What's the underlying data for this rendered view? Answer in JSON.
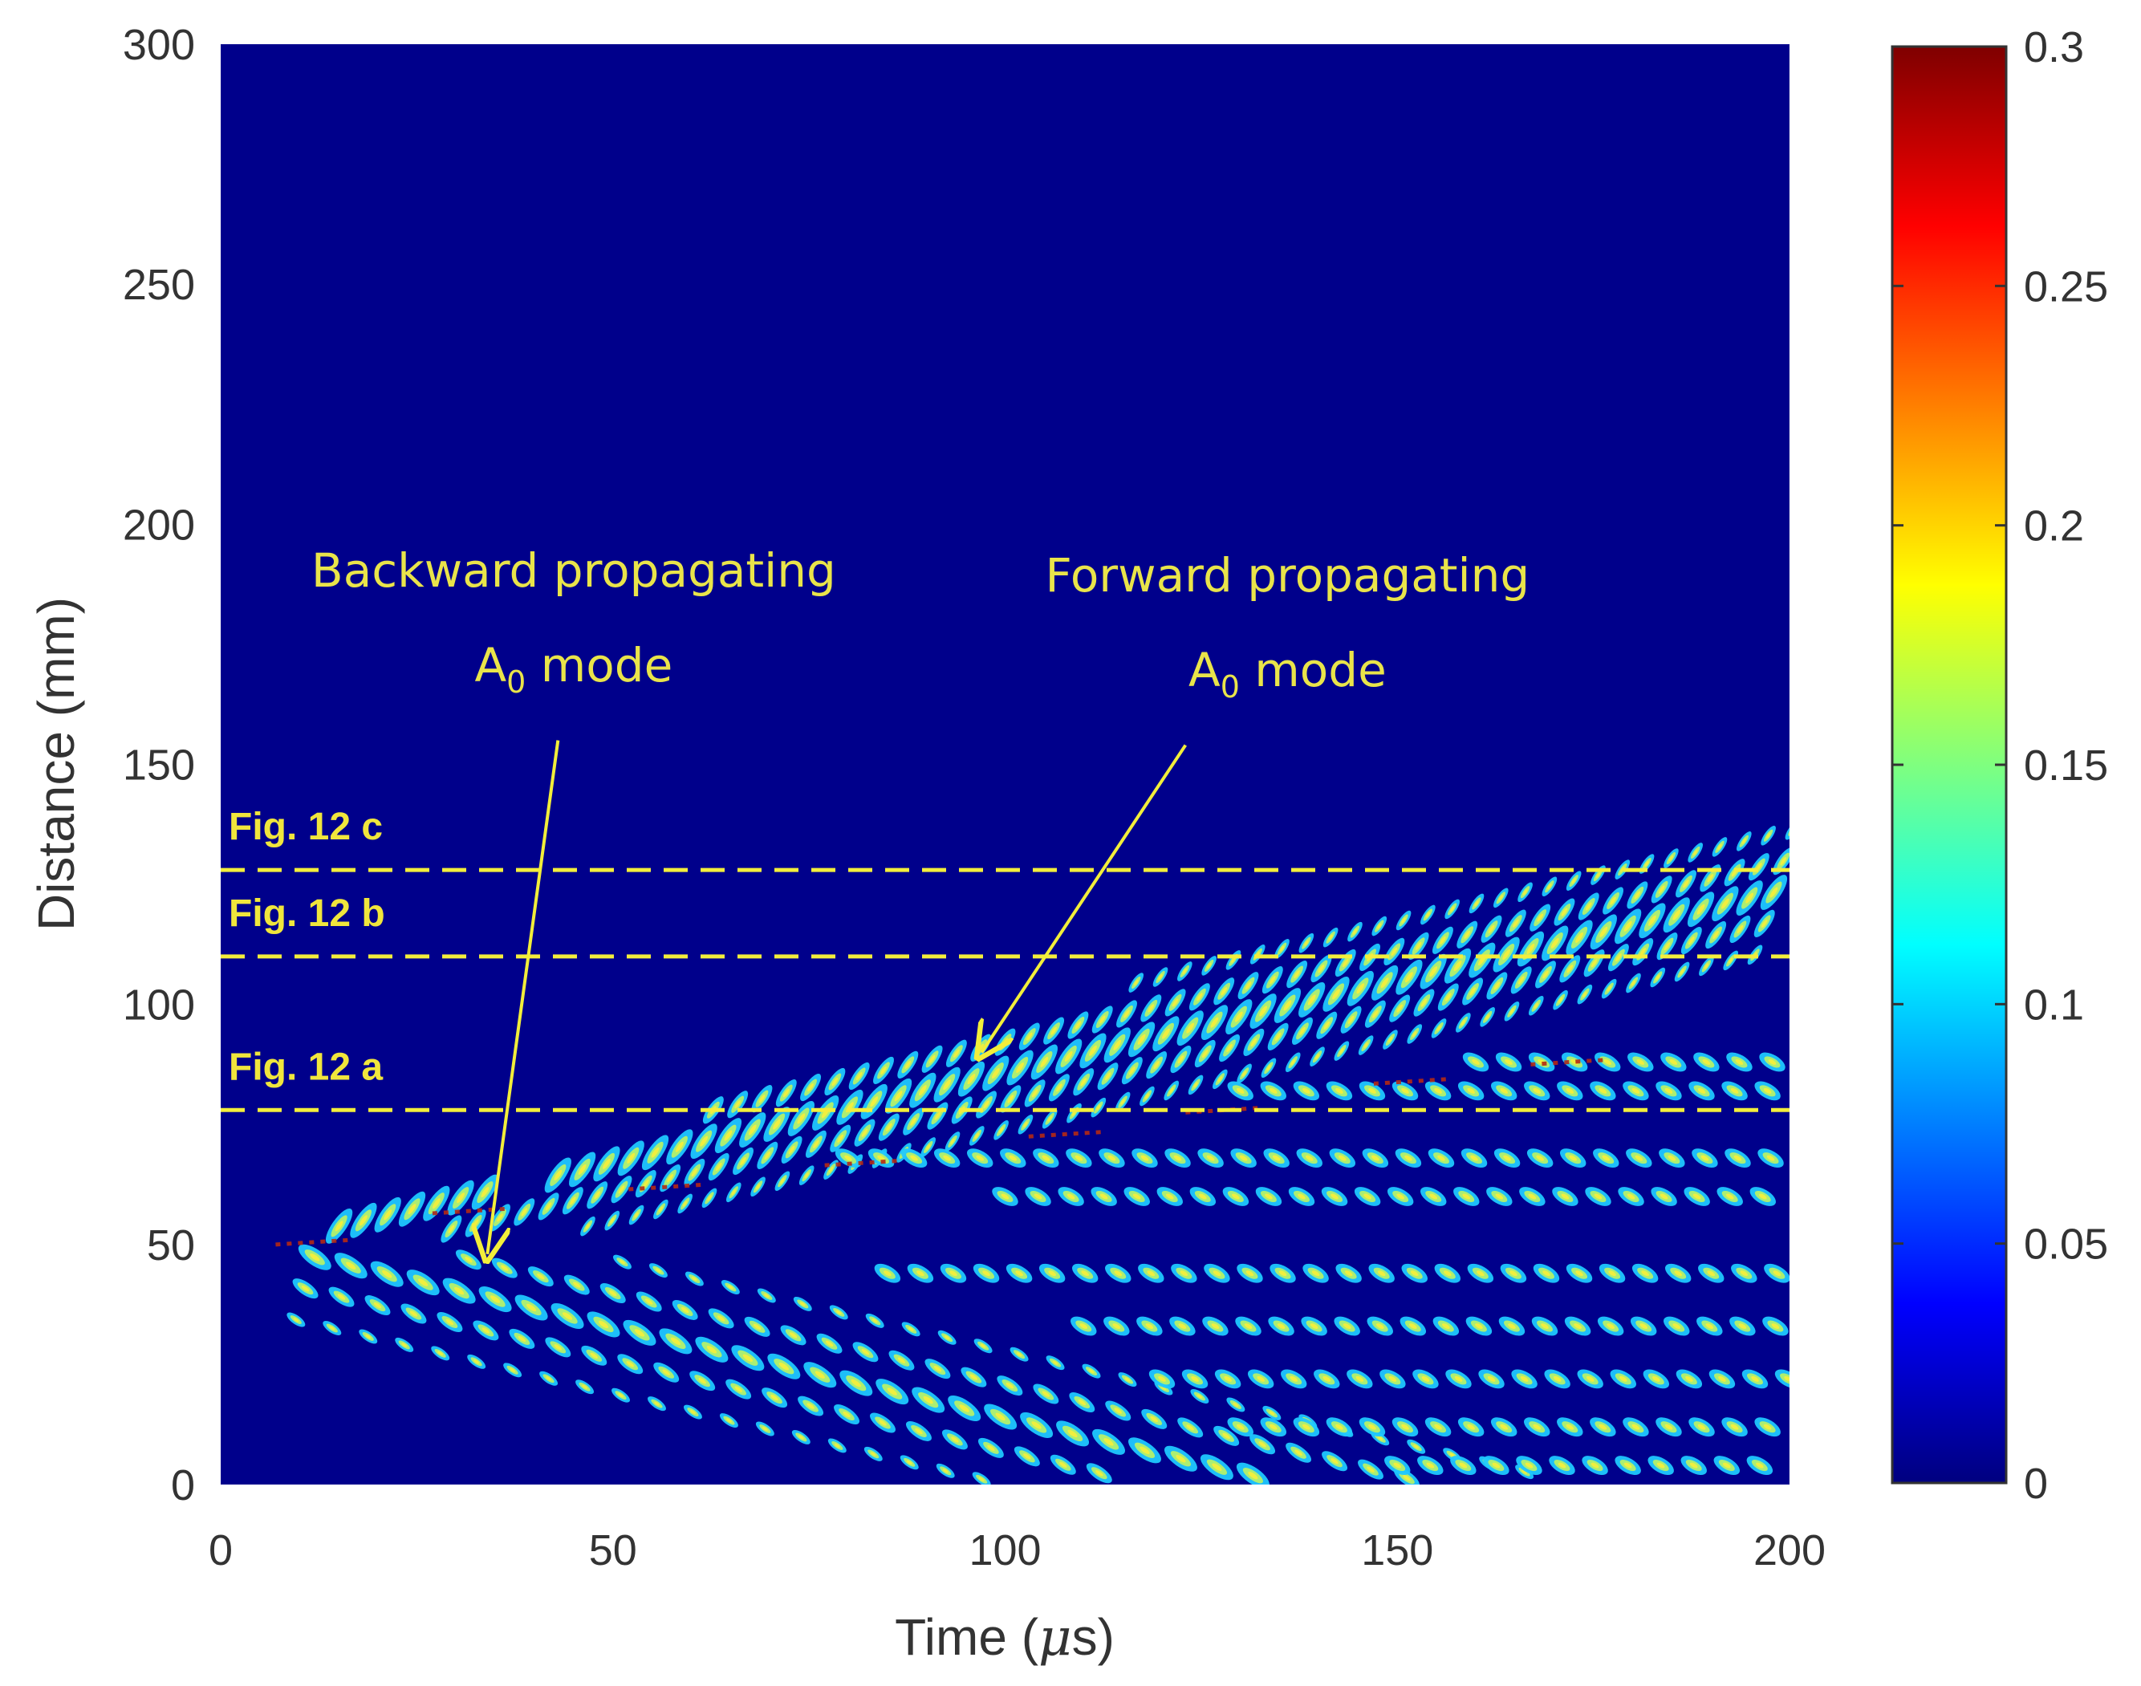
{
  "chart_data": {
    "type": "heatmap",
    "title": "",
    "xlabel_main": "Time (",
    "xlabel_mu": "μ",
    "xlabel_tail": "s)",
    "ylabel": "Distance (mm)",
    "xlim": [
      0,
      200
    ],
    "ylim": [
      0,
      300
    ],
    "xticks": [
      "0",
      "50",
      "100",
      "150",
      "200"
    ],
    "yticks": [
      "0",
      "50",
      "100",
      "150",
      "200",
      "250",
      "300"
    ],
    "colorbar": {
      "range": [
        0,
        0.3
      ],
      "ticks": [
        "0",
        "0.05",
        "0.1",
        "0.15",
        "0.2",
        "0.25",
        "0.3"
      ],
      "colormap": "jet",
      "stops": [
        "#00007f",
        "#0000ff",
        "#007fff",
        "#00ffff",
        "#7fff7f",
        "#ffff00",
        "#ff7f00",
        "#ff0000",
        "#7f0000"
      ]
    },
    "background_color": "#00008b",
    "source_distance_mm": 50,
    "source_time_us": 5,
    "dashed_lines": [
      {
        "label": "Fig. 12 a",
        "y": 78
      },
      {
        "label": "Fig. 12 b",
        "y": 110
      },
      {
        "label": "Fig. 12 c",
        "y": 128
      }
    ],
    "annotations": [
      {
        "line1": "Backward propagating",
        "line2_main": "A",
        "line2_sub": "0",
        "line2_tail": " mode",
        "text_x": 45,
        "text_y": 187,
        "arrow_from": [
          43,
          155
        ],
        "arrow_to": [
          34,
          48
        ]
      },
      {
        "line1": "Forward propagating",
        "line2_main": "A",
        "line2_sub": "0",
        "line2_tail": " mode",
        "text_x": 136,
        "text_y": 186,
        "arrow_from": [
          123,
          154
        ],
        "arrow_to": [
          97,
          90
        ]
      }
    ]
  }
}
